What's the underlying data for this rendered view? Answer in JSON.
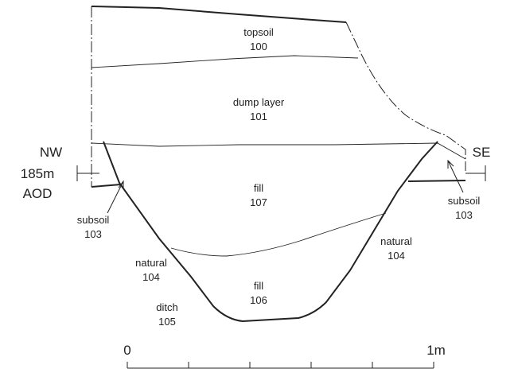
{
  "orientation": {
    "left": "NW",
    "right": "SE"
  },
  "datum": {
    "height": "185m",
    "reference": "AOD"
  },
  "labels": [
    {
      "name": "topsoil",
      "number": "100"
    },
    {
      "name": "dump layer",
      "number": "101"
    },
    {
      "name": "fill",
      "number": "107"
    },
    {
      "name": "fill",
      "number": "106"
    },
    {
      "name": "subsoil",
      "number": "103"
    },
    {
      "name": "subsoil",
      "number": "103"
    },
    {
      "name": "natural",
      "number": "104"
    },
    {
      "name": "natural",
      "number": "104"
    },
    {
      "name": "ditch",
      "number": "105"
    }
  ],
  "scale": {
    "start": "0",
    "end": "1m"
  }
}
